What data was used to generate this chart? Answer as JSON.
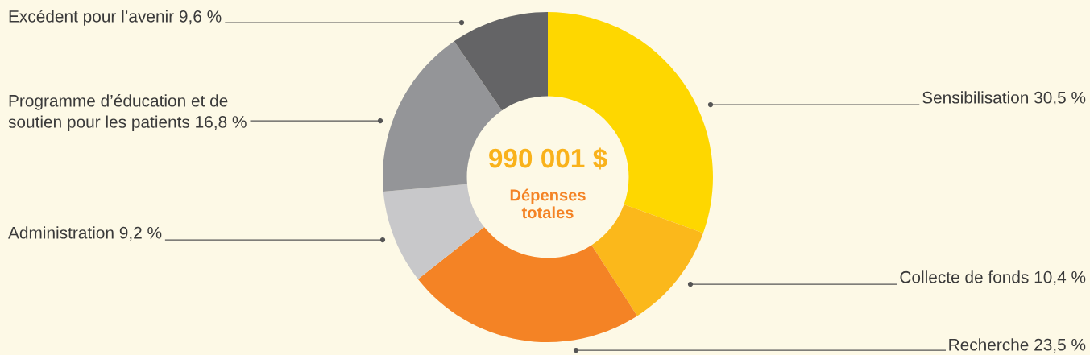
{
  "chart_data": {
    "type": "donut",
    "categories": [
      "Sensibilisation",
      "Collecte de fonds",
      "Recherche",
      "Administration",
      "Programme d’éducation et de\nsoutien pour les patients",
      "Excédent pour l’avenir"
    ],
    "values": [
      30.5,
      10.4,
      23.5,
      9.2,
      16.8,
      9.6
    ],
    "value_labels": [
      "30,5 %",
      "10,4 %",
      "23,5 %",
      "9,2 %",
      "16,8 %",
      "9,6 %"
    ],
    "colors": [
      "#fed700",
      "#fbb81b",
      "#f48325",
      "#c8c8ca",
      "#949598",
      "#646466"
    ],
    "annotations": [
      "990 001 $",
      "Dépenses\ntotales"
    ],
    "legend": false
  }
}
